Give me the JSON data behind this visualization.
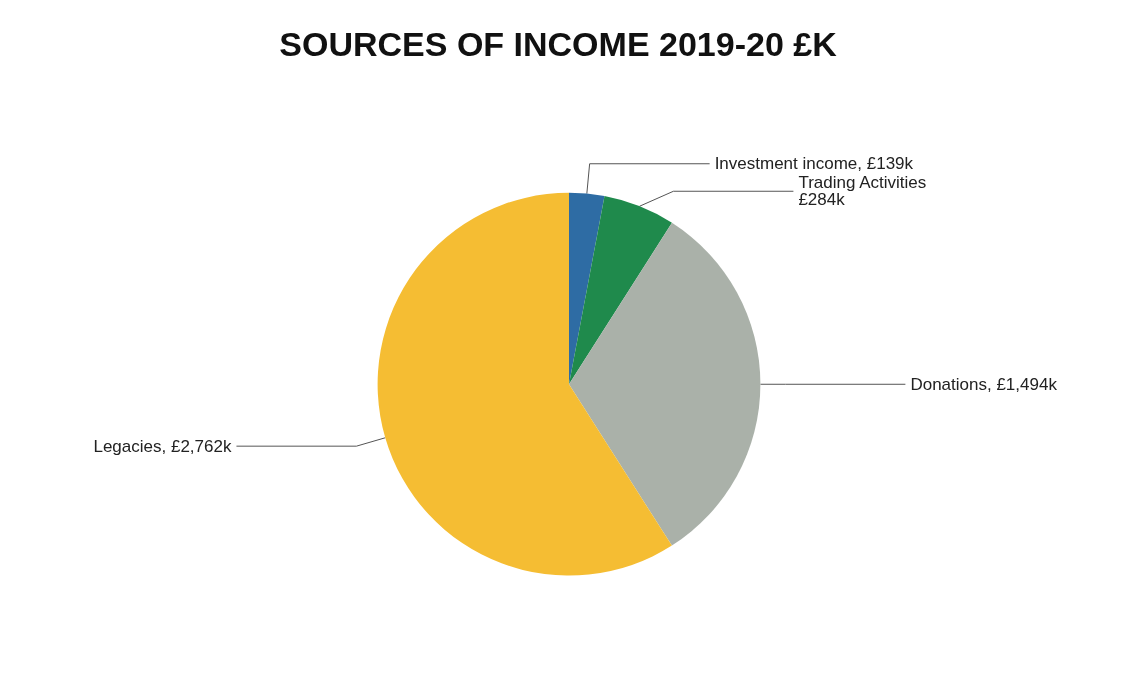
{
  "chart_data": {
    "type": "pie",
    "title": "SOURCES OF INCOME 2019-20 £K",
    "categories": [
      "Investment income",
      "Trading Activities",
      "Donations",
      "Legacies"
    ],
    "values": [
      139,
      284,
      1494,
      2762
    ],
    "value_labels": [
      "£139k",
      "£284k",
      "£1,494k",
      "£2,762k"
    ],
    "colors": [
      "#2e6ca4",
      "#1f8a4c",
      "#aab1a9",
      "#f5bd33"
    ],
    "legend": false
  }
}
